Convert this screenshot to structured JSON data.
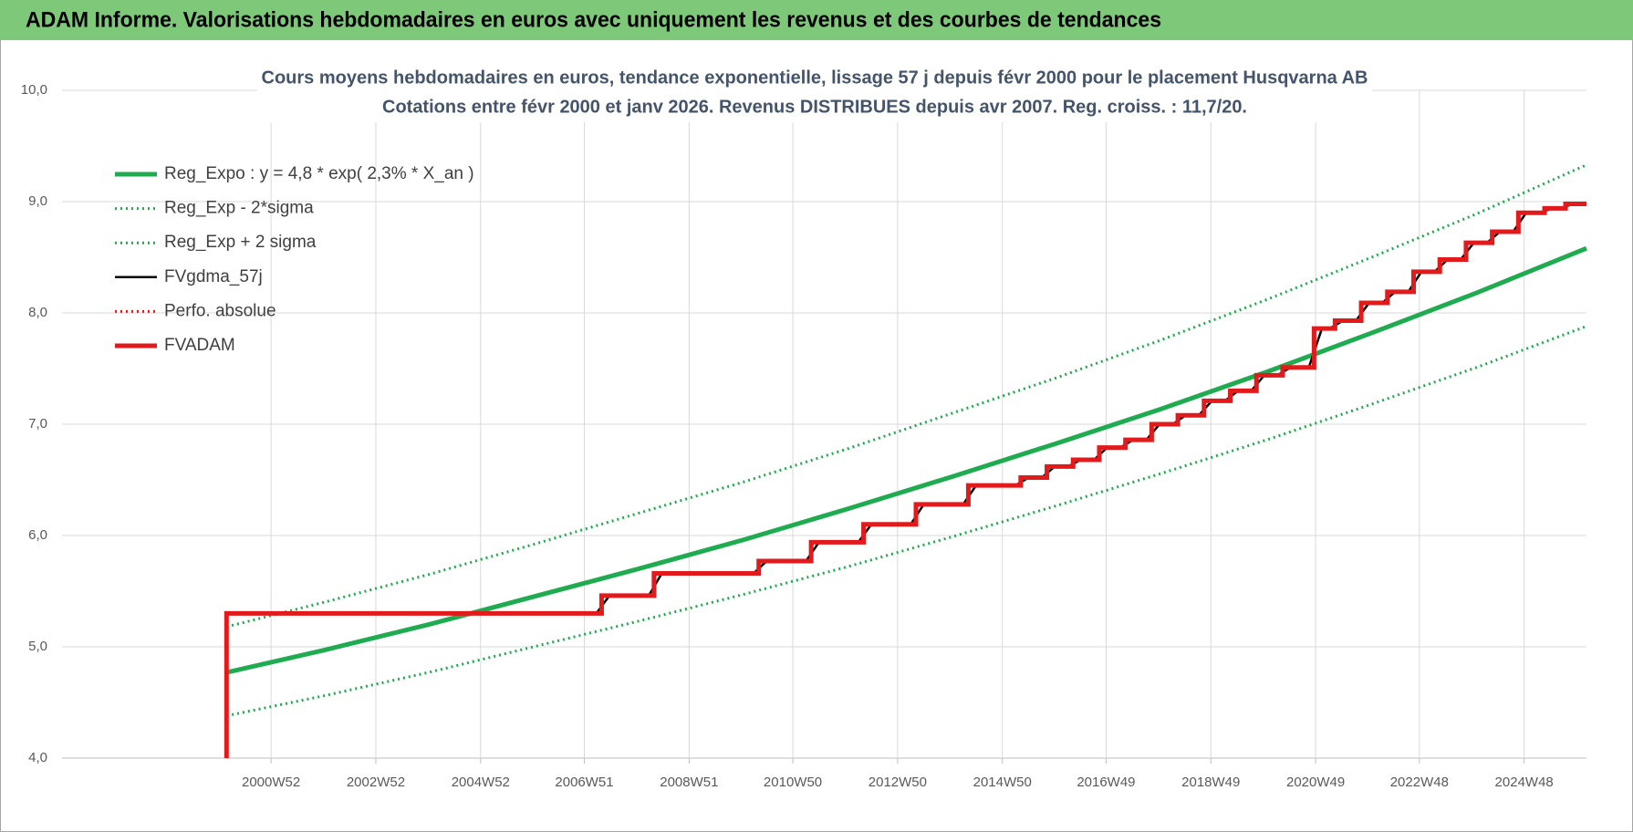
{
  "header": {
    "title": "ADAM Informe. Valorisations hebdomadaires en euros avec uniquement les revenus et des courbes de tendances"
  },
  "chart_data": {
    "type": "line",
    "title": [
      "Cours moyens hebdomadaires en euros, tendance exponentielle, lissage 57 j depuis févr 2000 pour le placement Husqvarna AB",
      "Cotations entre févr 2000 et janv 2026. Revenus DISTRIBUES depuis avr 2007. Reg. croiss. : 11,7/20."
    ],
    "xlim": [
      1997,
      2026.1
    ],
    "xticks": [
      {
        "value": 2000.99,
        "label": "2000W52"
      },
      {
        "value": 2002.99,
        "label": "2002W52"
      },
      {
        "value": 2004.99,
        "label": "2004W52"
      },
      {
        "value": 2006.97,
        "label": "2006W51"
      },
      {
        "value": 2008.97,
        "label": "2008W51"
      },
      {
        "value": 2010.95,
        "label": "2010W50"
      },
      {
        "value": 2012.95,
        "label": "2012W50"
      },
      {
        "value": 2014.95,
        "label": "2014W50"
      },
      {
        "value": 2016.93,
        "label": "2016W49"
      },
      {
        "value": 2018.93,
        "label": "2018W49"
      },
      {
        "value": 2020.93,
        "label": "2020W49"
      },
      {
        "value": 2022.91,
        "label": "2022W48"
      },
      {
        "value": 2024.91,
        "label": "2024W48"
      }
    ],
    "ylim": [
      4,
      10
    ],
    "yticks": [
      {
        "value": 4,
        "label": "4,0"
      },
      {
        "value": 5,
        "label": "5,0"
      },
      {
        "value": 6,
        "label": "6,0"
      },
      {
        "value": 7,
        "label": "7,0"
      },
      {
        "value": 8,
        "label": "8,0"
      },
      {
        "value": 9,
        "label": "9,0"
      },
      {
        "value": 10,
        "label": "10,0"
      }
    ],
    "grid": true,
    "series": [
      {
        "name": "Reg_Expo : y = 4,8 * exp( 2,3% *  X_an )",
        "color": "#1fab4f",
        "dash": "solid",
        "thick": true,
        "x": [
          2000.14,
          2002,
          2004,
          2006,
          2008,
          2010,
          2012,
          2014,
          2016,
          2018,
          2020,
          2022,
          2024,
          2026.1
        ],
        "values": [
          4.77,
          4.97,
          5.2,
          5.45,
          5.7,
          5.96,
          6.24,
          6.53,
          6.83,
          7.14,
          7.47,
          7.82,
          8.18,
          8.58
        ]
      },
      {
        "name": "Reg_Exp - 2*sigma",
        "color": "#1fab4f",
        "dash": "dotted",
        "thick": false,
        "x": [
          2000.14,
          2002,
          2004,
          2006,
          2008,
          2010,
          2012,
          2014,
          2016,
          2018,
          2020,
          2022,
          2024,
          2026.1
        ],
        "values": [
          4.38,
          4.56,
          4.77,
          5.0,
          5.23,
          5.47,
          5.72,
          5.99,
          6.27,
          6.56,
          6.86,
          7.18,
          7.51,
          7.88
        ]
      },
      {
        "name": "Reg_Exp + 2 sigma",
        "color": "#1fab4f",
        "dash": "dotted",
        "thick": false,
        "x": [
          2000.14,
          2002,
          2004,
          2006,
          2008,
          2010,
          2012,
          2014,
          2016,
          2018,
          2020,
          2022,
          2024,
          2026.1
        ],
        "values": [
          5.18,
          5.4,
          5.65,
          5.92,
          6.2,
          6.48,
          6.78,
          7.1,
          7.42,
          7.76,
          8.12,
          8.5,
          8.89,
          9.33
        ]
      },
      {
        "name": "FVgdma_57j",
        "color": "#000000",
        "dash": "solid",
        "thick": false,
        "x": [
          2000.14,
          2007.2,
          2007.45,
          2008.2,
          2008.45,
          2010.2,
          2010.45,
          2011.2,
          2011.45,
          2012.2,
          2012.45,
          2013.2,
          2013.45,
          2014.2,
          2014.45,
          2015.2,
          2015.45,
          2015.7,
          2015.95,
          2016.2,
          2016.45,
          2016.7,
          2016.95,
          2017.2,
          2017.45,
          2017.7,
          2017.95,
          2018.2,
          2018.45,
          2018.7,
          2018.95,
          2019.2,
          2019.45,
          2019.7,
          2019.95,
          2020.2,
          2020.45,
          2020.8,
          2021.05,
          2021.2,
          2021.45,
          2021.7,
          2021.95,
          2022.2,
          2022.45,
          2022.7,
          2022.95,
          2023.2,
          2023.45,
          2023.7,
          2023.95,
          2024.2,
          2024.45,
          2024.7,
          2024.95,
          2025.2,
          2025.45,
          2025.6,
          2025.85,
          2026.1
        ],
        "values": [
          5.3,
          5.3,
          5.46,
          5.46,
          5.66,
          5.66,
          5.77,
          5.77,
          5.94,
          5.94,
          6.1,
          6.1,
          6.28,
          6.28,
          6.45,
          6.45,
          6.52,
          6.52,
          6.62,
          6.62,
          6.68,
          6.68,
          6.79,
          6.79,
          6.86,
          6.86,
          7.0,
          7.0,
          7.08,
          7.08,
          7.21,
          7.21,
          7.3,
          7.3,
          7.44,
          7.44,
          7.51,
          7.51,
          7.86,
          7.86,
          7.93,
          7.93,
          8.09,
          8.09,
          8.19,
          8.19,
          8.37,
          8.37,
          8.48,
          8.48,
          8.63,
          8.63,
          8.73,
          8.73,
          8.9,
          8.9,
          8.94,
          8.94,
          8.98,
          8.98
        ]
      },
      {
        "name": "Perfo. absolue",
        "color": "#e31a1c",
        "dash": "dotted",
        "thick": false,
        "x": [
          2000.14,
          2000.14,
          2007.3,
          2007.3,
          2008.3,
          2008.3,
          2010.3,
          2010.3,
          2011.3,
          2011.3,
          2012.3,
          2012.3,
          2013.3,
          2013.3,
          2014.3,
          2014.3,
          2015.3,
          2015.3,
          2015.8,
          2015.8,
          2016.3,
          2016.3,
          2016.8,
          2016.8,
          2017.3,
          2017.3,
          2017.8,
          2017.8,
          2018.3,
          2018.3,
          2018.8,
          2018.8,
          2019.3,
          2019.3,
          2019.8,
          2019.8,
          2020.3,
          2020.3,
          2020.9,
          2020.9,
          2021.3,
          2021.3,
          2021.8,
          2021.8,
          2022.3,
          2022.3,
          2022.8,
          2022.8,
          2023.3,
          2023.3,
          2023.8,
          2023.8,
          2024.3,
          2024.3,
          2024.8,
          2024.8,
          2025.3,
          2025.3,
          2025.7,
          2025.7,
          2026.1
        ],
        "values": [
          4.0,
          5.3,
          5.3,
          5.46,
          5.46,
          5.66,
          5.66,
          5.77,
          5.77,
          5.94,
          5.94,
          6.1,
          6.1,
          6.28,
          6.28,
          6.45,
          6.45,
          6.52,
          6.52,
          6.62,
          6.62,
          6.68,
          6.68,
          6.79,
          6.79,
          6.86,
          6.86,
          7.0,
          7.0,
          7.08,
          7.08,
          7.21,
          7.21,
          7.3,
          7.3,
          7.44,
          7.44,
          7.51,
          7.51,
          7.86,
          7.86,
          7.93,
          7.93,
          8.09,
          8.09,
          8.19,
          8.19,
          8.37,
          8.37,
          8.48,
          8.48,
          8.63,
          8.63,
          8.73,
          8.73,
          8.9,
          8.9,
          8.94,
          8.94,
          8.98,
          8.98
        ]
      },
      {
        "name": "FVADAM",
        "color": "#e31a1c",
        "dash": "solid",
        "thick": true,
        "x": [
          2000.14,
          2000.14,
          2007.3,
          2007.3,
          2008.3,
          2008.3,
          2010.3,
          2010.3,
          2011.3,
          2011.3,
          2012.3,
          2012.3,
          2013.3,
          2013.3,
          2014.3,
          2014.3,
          2015.3,
          2015.3,
          2015.8,
          2015.8,
          2016.3,
          2016.3,
          2016.8,
          2016.8,
          2017.3,
          2017.3,
          2017.8,
          2017.8,
          2018.3,
          2018.3,
          2018.8,
          2018.8,
          2019.3,
          2019.3,
          2019.8,
          2019.8,
          2020.3,
          2020.3,
          2020.9,
          2020.9,
          2021.3,
          2021.3,
          2021.8,
          2021.8,
          2022.3,
          2022.3,
          2022.8,
          2022.8,
          2023.3,
          2023.3,
          2023.8,
          2023.8,
          2024.3,
          2024.3,
          2024.8,
          2024.8,
          2025.3,
          2025.3,
          2025.7,
          2025.7,
          2026.1
        ],
        "values": [
          4.0,
          5.3,
          5.3,
          5.46,
          5.46,
          5.66,
          5.66,
          5.77,
          5.77,
          5.94,
          5.94,
          6.1,
          6.1,
          6.28,
          6.28,
          6.45,
          6.45,
          6.52,
          6.52,
          6.62,
          6.62,
          6.68,
          6.68,
          6.79,
          6.79,
          6.86,
          6.86,
          7.0,
          7.0,
          7.08,
          7.08,
          7.21,
          7.21,
          7.3,
          7.3,
          7.44,
          7.44,
          7.51,
          7.51,
          7.86,
          7.86,
          7.93,
          7.93,
          8.09,
          8.09,
          8.19,
          8.19,
          8.37,
          8.37,
          8.48,
          8.48,
          8.63,
          8.63,
          8.73,
          8.73,
          8.9,
          8.9,
          8.94,
          8.94,
          8.98,
          8.98
        ]
      }
    ]
  }
}
